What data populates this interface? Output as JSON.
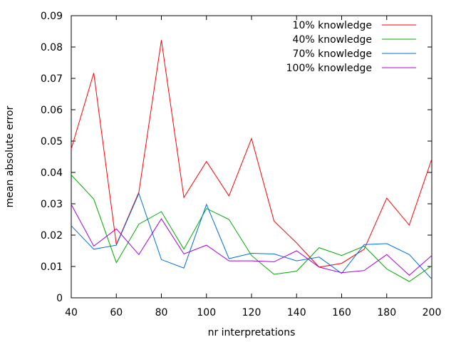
{
  "chart_data": {
    "type": "line",
    "xlabel": "nr interpretations",
    "ylabel": "mean absolute error",
    "xlim": [
      40,
      200
    ],
    "ylim": [
      0,
      0.09
    ],
    "x_ticks": [
      "40",
      "60",
      "80",
      "100",
      "120",
      "140",
      "160",
      "180",
      "200"
    ],
    "y_ticks": [
      "0",
      "0.01",
      "0.02",
      "0.03",
      "0.04",
      "0.05",
      "0.06",
      "0.07",
      "0.08",
      "0.09"
    ],
    "grid": false,
    "legend_position": "top-right",
    "x": [
      40,
      50,
      60,
      70,
      80,
      90,
      100,
      110,
      120,
      130,
      140,
      150,
      160,
      170,
      180,
      190,
      200
    ],
    "series": [
      {
        "name": "10% knowledge",
        "color": "#ff0000",
        "values": [
          0.0475,
          0.0717,
          0.017,
          0.0337,
          0.0822,
          0.032,
          0.0435,
          0.0325,
          0.0508,
          0.0245,
          0.0175,
          0.0098,
          0.011,
          0.0155,
          0.0318,
          0.0232,
          0.0443
        ]
      },
      {
        "name": "40% knowledge",
        "color": "#00aa00",
        "values": [
          0.0392,
          0.0315,
          0.0112,
          0.0235,
          0.0275,
          0.0155,
          0.0285,
          0.025,
          0.0135,
          0.0075,
          0.0085,
          0.016,
          0.0135,
          0.0165,
          0.0092,
          0.0052,
          0.0102
        ]
      },
      {
        "name": "70% knowledge",
        "color": "#0070dd",
        "values": [
          0.023,
          0.0155,
          0.0168,
          0.0333,
          0.0122,
          0.0095,
          0.0298,
          0.0125,
          0.0142,
          0.014,
          0.0118,
          0.013,
          0.0078,
          0.017,
          0.0173,
          0.0138,
          0.006
        ]
      },
      {
        "name": "100% knowledge",
        "color": "#aa00dd",
        "values": [
          0.0298,
          0.0165,
          0.022,
          0.0138,
          0.0252,
          0.014,
          0.0168,
          0.0118,
          0.0118,
          0.0115,
          0.015,
          0.0098,
          0.008,
          0.0087,
          0.0138,
          0.0072,
          0.0135
        ]
      }
    ]
  }
}
